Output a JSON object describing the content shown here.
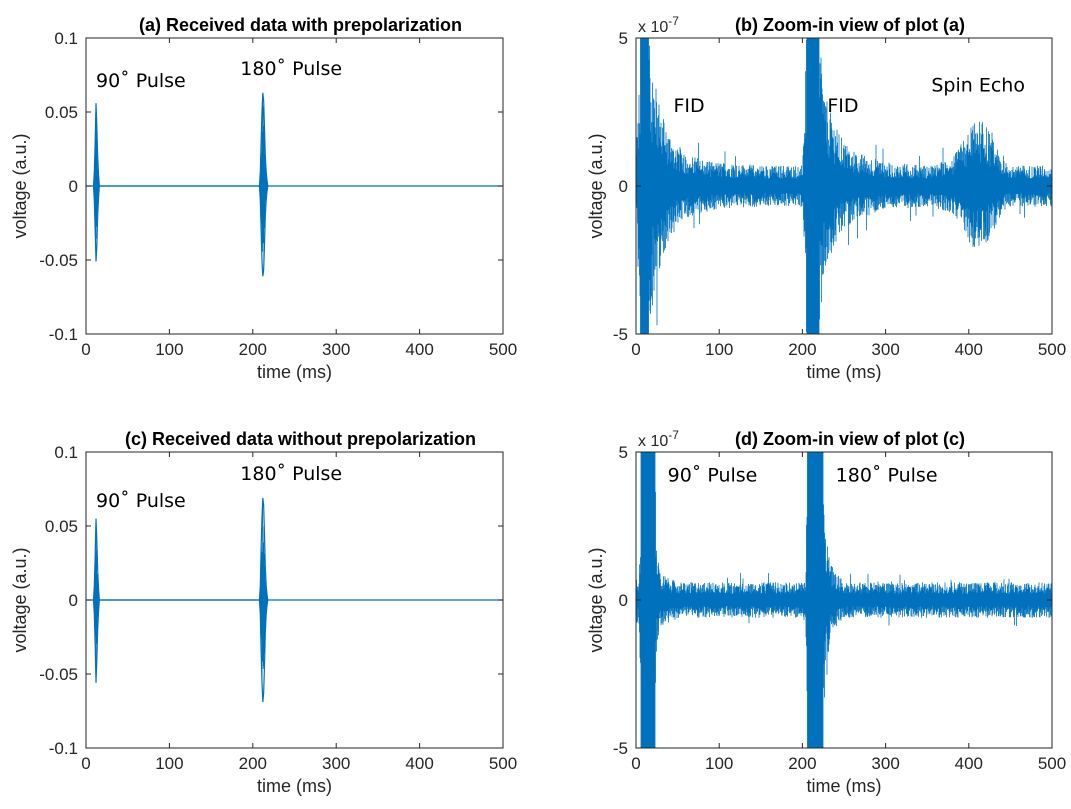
{
  "figure": {
    "colors": {
      "signal": "#0072BD",
      "axes": "#262626",
      "background": "#ffffff"
    }
  },
  "chart_data": [
    {
      "type": "line",
      "title": "(a) Received data with prepolarization",
      "xlabel": "time (ms)",
      "ylabel": "voltage (a.u.)",
      "xlim": [
        0,
        500
      ],
      "ylim": [
        -0.1,
        0.1
      ],
      "xticks": [
        "0",
        "100",
        "200",
        "300",
        "400",
        "500"
      ],
      "yticks": [
        "0.1",
        "0.05",
        "0",
        "-0.05",
        "-0.1"
      ],
      "yticks_values": [
        0.1,
        0.05,
        0,
        -0.05,
        -0.1
      ],
      "grid": false,
      "annotations": [
        {
          "text": "90˚ Pulse",
          "x": 12,
          "y": 0.067
        },
        {
          "text": "180˚ Pulse",
          "x": 185,
          "y": 0.075
        }
      ],
      "series": [
        {
          "segments": [
            {
              "x": [
                0,
                9,
                10,
                11,
                12,
                13,
                14,
                15,
                16,
                20,
                208,
                209,
                210,
                211,
                212,
                213,
                214,
                215,
                216,
                217,
                218,
                222,
                500
              ],
              "y": [
                0,
                0,
                0.01,
                0.03,
                0.056,
                0.04,
                0.02,
                0.008,
                0,
                0,
                0,
                0.01,
                0.03,
                0.05,
                0.063,
                0.058,
                0.04,
                0.02,
                0.01,
                0.004,
                0,
                0,
                0
              ]
            },
            {
              "x": [
                9,
                10,
                11,
                12,
                13,
                14,
                15,
                16,
                208,
                209,
                210,
                211,
                212,
                213,
                214,
                215,
                216,
                217,
                218
              ],
              "y": [
                0,
                -0.01,
                -0.03,
                -0.051,
                -0.04,
                -0.02,
                -0.008,
                0,
                0,
                -0.01,
                -0.03,
                -0.05,
                -0.061,
                -0.057,
                -0.04,
                -0.02,
                -0.01,
                -0.004,
                0
              ]
            }
          ]
        }
      ]
    },
    {
      "type": "line",
      "title": "(b) Zoom-in view of plot (a)",
      "xlabel": "time (ms)",
      "ylabel": "voltage (a.u.)",
      "y_exponent": "x 10",
      "y_exponent_power": "-7",
      "xlim": [
        0,
        500
      ],
      "ylim": [
        -5,
        5
      ],
      "xticks": [
        "0",
        "100",
        "200",
        "300",
        "400",
        "500"
      ],
      "yticks": [
        "5",
        "0",
        "-5"
      ],
      "yticks_values": [
        5,
        0,
        -5
      ],
      "grid": false,
      "annotations": [
        {
          "text": "FID",
          "x": 45,
          "y": 2.5
        },
        {
          "text": "FID",
          "x": 230,
          "y": 2.5
        },
        {
          "text": "Spin Echo",
          "x": 355,
          "y": 3.2
        }
      ],
      "series": [
        {
          "envelope": {
            "x": [
              0,
              5,
              10,
              15,
              20,
              25,
              30,
              40,
              50,
              60,
              80,
              100,
              150,
              200,
              205,
              210,
              215,
              220,
              225,
              230,
              240,
              250,
              260,
              280,
              300,
              350,
              380,
              390,
              400,
              410,
              420,
              430,
              440,
              450,
              500
            ],
            "upper": [
              1.2,
              5,
              5,
              5,
              4,
              3.2,
              2.6,
              1.8,
              1.4,
              1.1,
              0.9,
              0.8,
              0.7,
              0.7,
              5,
              5,
              5,
              5,
              3.6,
              2.8,
              2.0,
              1.5,
              1.2,
              1.0,
              0.8,
              0.7,
              0.9,
              1.4,
              1.9,
              2.3,
              2.1,
              1.5,
              0.9,
              0.7,
              0.7
            ],
            "lower": [
              -1.2,
              -5,
              -5,
              -5,
              -4,
              -3.2,
              -2.6,
              -1.8,
              -1.4,
              -1.1,
              -0.9,
              -0.8,
              -0.7,
              -0.7,
              -5,
              -5,
              -5,
              -5,
              -3.6,
              -2.8,
              -2.0,
              -1.5,
              -1.2,
              -1.0,
              -0.8,
              -0.7,
              -0.9,
              -1.4,
              -1.9,
              -2.3,
              -2.1,
              -1.5,
              -0.9,
              -0.7,
              -0.7
            ]
          }
        }
      ]
    },
    {
      "type": "line",
      "title": "(c) Received data without prepolarization",
      "xlabel": "time (ms)",
      "ylabel": "voltage (a.u.)",
      "xlim": [
        0,
        500
      ],
      "ylim": [
        -0.1,
        0.1
      ],
      "xticks": [
        "0",
        "100",
        "200",
        "300",
        "400",
        "500"
      ],
      "yticks": [
        "0.1",
        "0.05",
        "0",
        "-0.05",
        "-0.1"
      ],
      "yticks_values": [
        0.1,
        0.05,
        0,
        -0.05,
        -0.1
      ],
      "grid": false,
      "annotations": [
        {
          "text": "90˚ Pulse",
          "x": 12,
          "y": 0.063
        },
        {
          "text": "180˚ Pulse",
          "x": 185,
          "y": 0.081
        }
      ],
      "series": [
        {
          "segments": [
            {
              "x": [
                0,
                9,
                10,
                11,
                12,
                13,
                14,
                15,
                16,
                20,
                208,
                209,
                210,
                211,
                212,
                213,
                214,
                215,
                216,
                217,
                218,
                222,
                500
              ],
              "y": [
                0,
                0,
                0.01,
                0.03,
                0.055,
                0.04,
                0.02,
                0.008,
                0,
                0,
                0,
                0.01,
                0.035,
                0.055,
                0.069,
                0.064,
                0.045,
                0.022,
                0.01,
                0.004,
                0,
                0,
                0
              ]
            },
            {
              "x": [
                9,
                10,
                11,
                12,
                13,
                14,
                15,
                16,
                208,
                209,
                210,
                211,
                212,
                213,
                214,
                215,
                216,
                217,
                218
              ],
              "y": [
                0,
                -0.01,
                -0.03,
                -0.056,
                -0.04,
                -0.02,
                -0.008,
                0,
                0,
                -0.01,
                -0.035,
                -0.055,
                -0.069,
                -0.063,
                -0.045,
                -0.022,
                -0.01,
                -0.004,
                0
              ]
            }
          ]
        }
      ]
    },
    {
      "type": "line",
      "title": "(d) Zoom-in view of plot (c)",
      "xlabel": "time (ms)",
      "ylabel": "voltage (a.u.)",
      "y_exponent": "x 10",
      "y_exponent_power": "-7",
      "xlim": [
        0,
        500
      ],
      "ylim": [
        -5,
        5
      ],
      "xticks": [
        "0",
        "100",
        "200",
        "300",
        "400",
        "500"
      ],
      "yticks": [
        "5",
        "0",
        "-5"
      ],
      "yticks_values": [
        5,
        0,
        -5
      ],
      "grid": false,
      "annotations": [
        {
          "text": "90˚ Pulse",
          "x": 38,
          "y": 4.0
        },
        {
          "text": "180˚ Pulse",
          "x": 240,
          "y": 4.0
        }
      ],
      "series": [
        {
          "envelope": {
            "x": [
              0,
              4,
              6,
              10,
              15,
              20,
              23,
              25,
              30,
              50,
              100,
              150,
              200,
              204,
              206,
              210,
              215,
              220,
              225,
              228,
              235,
              250,
              300,
              350,
              400,
              450,
              500
            ],
            "upper": [
              0.8,
              0.8,
              5,
              5,
              5,
              5,
              5,
              1.6,
              0.9,
              0.6,
              0.6,
              0.6,
              0.6,
              0.8,
              5,
              5,
              5,
              5,
              5,
              2.4,
              1.2,
              0.6,
              0.6,
              0.6,
              0.6,
              0.6,
              0.6
            ],
            "lower": [
              -0.8,
              -0.8,
              -5,
              -5,
              -5,
              -5,
              -5,
              -1.6,
              -0.9,
              -0.6,
              -0.6,
              -0.6,
              -0.6,
              -0.8,
              -5,
              -5,
              -5,
              -5,
              -5,
              -2.4,
              -1.2,
              -0.6,
              -0.6,
              -0.6,
              -0.6,
              -0.6,
              -0.6
            ]
          }
        }
      ]
    }
  ]
}
